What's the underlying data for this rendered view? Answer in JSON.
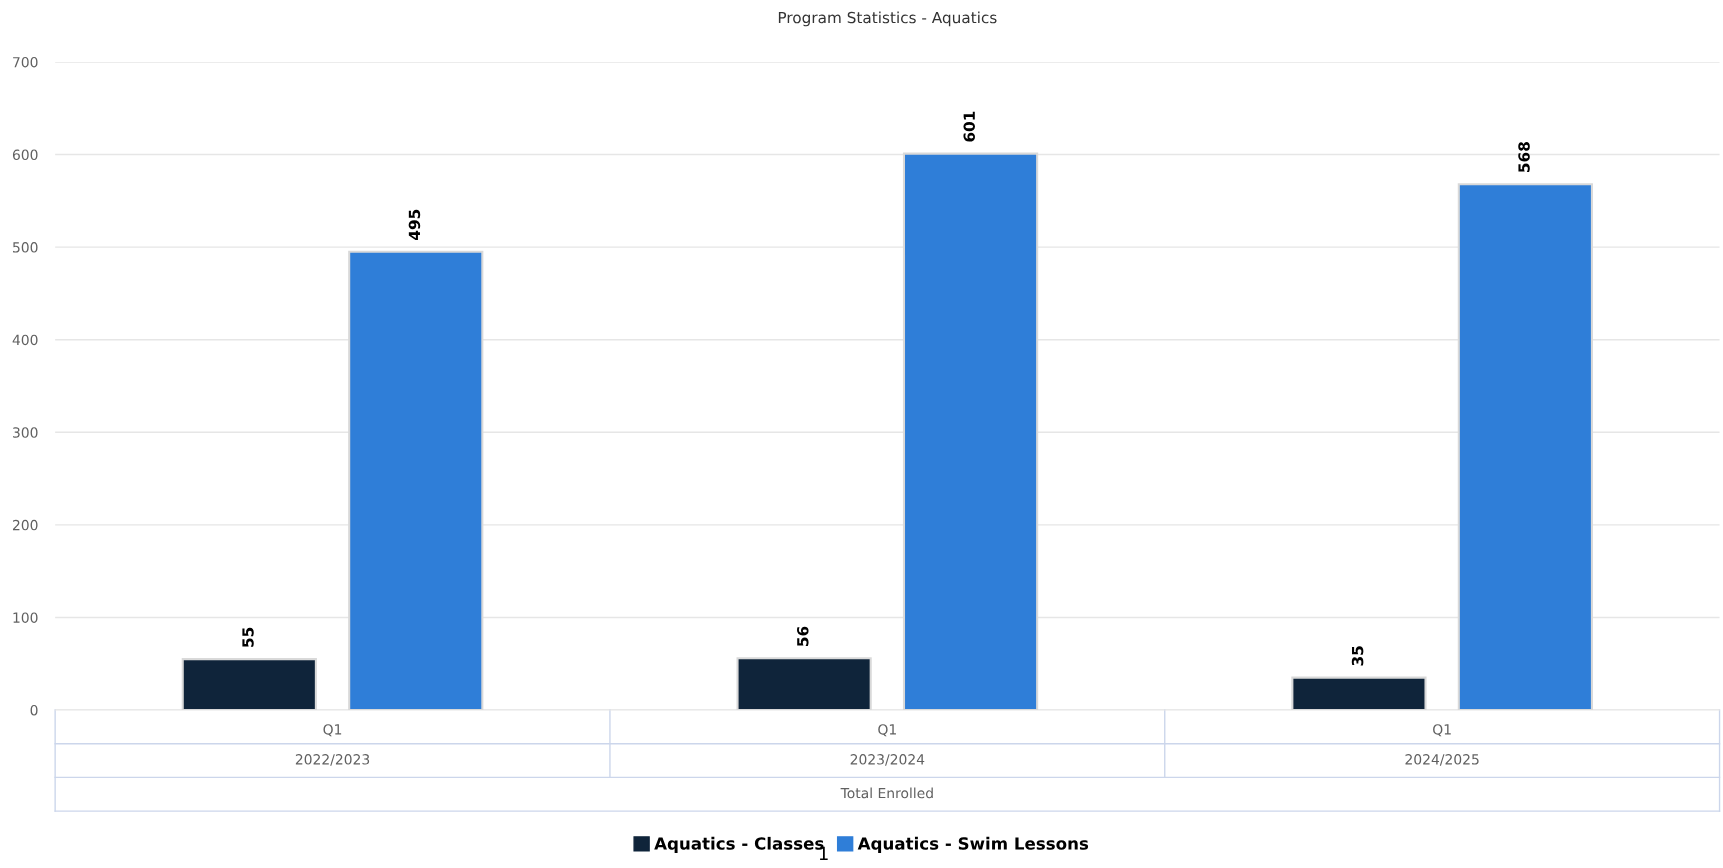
{
  "chart_data": {
    "type": "bar",
    "title": "Program Statistics - Aquatics",
    "categories": [
      "Q1",
      "Q1",
      "Q1"
    ],
    "series": [
      {
        "name": "Aquatics - Classes",
        "color": "#0f243a",
        "values": [
          55,
          56,
          35
        ]
      },
      {
        "name": "Aquatics - Swim Lessons",
        "color": "#2f7ed8",
        "values": [
          495,
          601,
          568
        ]
      }
    ],
    "annotations": [
      "2022/2023",
      "2023/2024",
      "2024/2025",
      "Total Enrolled",
      "1"
    ],
    "ylim": [
      0,
      700
    ],
    "yticks": [
      0,
      100,
      200,
      300,
      400,
      500,
      600,
      700
    ],
    "grid": "y",
    "legend": "bottom",
    "data_labels": true
  }
}
